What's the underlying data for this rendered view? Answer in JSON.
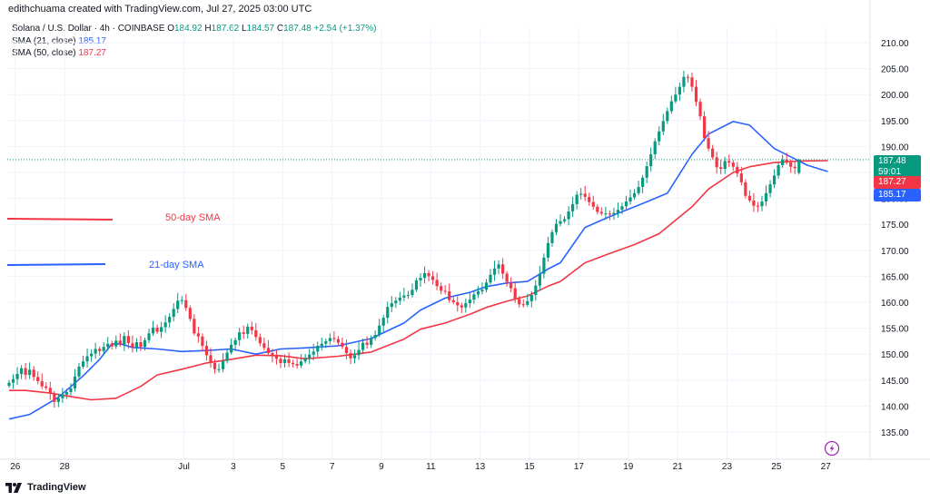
{
  "credit": "edithchuama created with TradingView.com, Jul 27, 2025 03:00 UTC",
  "symbol": {
    "name": "Solana / U.S. Dollar · 4h · COINBASE",
    "o_label": "O",
    "o": "184.92",
    "h_label": "H",
    "h": "187.62",
    "l_label": "L",
    "l": "184.57",
    "c_label": "C",
    "c": "187.48",
    "change": "+2.54 (+1.37%)"
  },
  "indicators": [
    {
      "label": "SMA (21, close)",
      "value": "185.17",
      "color": "#2962ff"
    },
    {
      "label": "SMA (50, close)",
      "value": "187.27",
      "color": "#f23645"
    }
  ],
  "price_tags": {
    "last_price": "187.48",
    "countdown": "59:01",
    "sma50": "187.27",
    "sma21": "185.17"
  },
  "annotations": {
    "sma50_label": "50-day SMA",
    "sma21_label": "21-day SMA"
  },
  "footer": {
    "brand": "TradingView"
  },
  "icons": {
    "logo": "tradingview-logo-icon",
    "alert": "lightning-icon"
  },
  "colors": {
    "up": "#089981",
    "down": "#f23645",
    "sma21": "#2962ff",
    "sma50": "#f23645",
    "grid": "#f0f3fa",
    "text": "#131722"
  },
  "chart_data": {
    "type": "candlestick",
    "interval": "4h",
    "ylim": [
      130,
      212
    ],
    "y_ticks": [
      135,
      140,
      145,
      150,
      155,
      160,
      165,
      170,
      175,
      180,
      185,
      190,
      195,
      200,
      205,
      210
    ],
    "x_tick_labels": [
      {
        "x": 1.5,
        "label": "26"
      },
      {
        "x": 13.5,
        "label": "28"
      },
      {
        "x": 42.5,
        "label": "Jul"
      },
      {
        "x": 54.5,
        "label": "3"
      },
      {
        "x": 66.5,
        "label": "5"
      },
      {
        "x": 78.5,
        "label": "7"
      },
      {
        "x": 90.5,
        "label": "9"
      },
      {
        "x": 102.5,
        "label": "11"
      },
      {
        "x": 114.5,
        "label": "13"
      },
      {
        "x": 126.5,
        "label": "15"
      },
      {
        "x": 138.5,
        "label": "17"
      },
      {
        "x": 150.5,
        "label": "19"
      },
      {
        "x": 162.5,
        "label": "21"
      },
      {
        "x": 174.5,
        "label": "23"
      },
      {
        "x": 186.5,
        "label": "25"
      },
      {
        "x": 198.5,
        "label": "27"
      }
    ],
    "grid": true,
    "candle_closes": [
      144.5,
      145.2,
      146.2,
      147.3,
      146.0,
      147.0,
      145.6,
      144.8,
      143.8,
      143.5,
      142.4,
      140.8,
      141.5,
      142.2,
      142.7,
      143.4,
      145.7,
      147.6,
      148.6,
      149.6,
      150.1,
      151.0,
      150.6,
      151.4,
      152.0,
      151.5,
      152.6,
      151.8,
      153.5,
      152.1,
      151.3,
      152.3,
      151.4,
      152.7,
      154.0,
      155.1,
      154.3,
      155.2,
      156.1,
      157.2,
      158.7,
      160.3,
      160.4,
      158.9,
      156.8,
      154.0,
      153.4,
      151.6,
      149.8,
      148.3,
      147.1,
      147.1,
      148.7,
      150.3,
      151.8,
      152.7,
      154.2,
      153.9,
      155.3,
      154.6,
      153.3,
      152.1,
      151.2,
      150.2,
      149.6,
      149.1,
      148.3,
      149.0,
      148.3,
      148.1,
      147.8,
      148.6,
      149.3,
      149.9,
      150.5,
      151.6,
      152.0,
      152.5,
      153.1,
      152.9,
      152.2,
      151.4,
      150.2,
      149.2,
      149.8,
      150.8,
      152.2,
      151.8,
      153.1,
      153.7,
      155.5,
      157.0,
      159.1,
      159.8,
      160.3,
      160.9,
      161.3,
      161.4,
      162.4,
      164.2,
      164.7,
      165.6,
      165.0,
      164.3,
      163.1,
      162.2,
      162.1,
      160.4,
      160.0,
      159.4,
      159.0,
      159.8,
      160.5,
      161.5,
      162.1,
      162.4,
      163.8,
      165.3,
      166.5,
      167.3,
      165.5,
      163.9,
      162.7,
      160.6,
      159.6,
      159.5,
      160.2,
      161.4,
      163.2,
      165.5,
      168.6,
      171.4,
      173.5,
      175.1,
      175.6,
      176.0,
      177.5,
      178.9,
      180.7,
      180.9,
      180.3,
      179.3,
      178.4,
      177.4,
      177.1,
      177.1,
      176.9,
      177.2,
      177.8,
      178.5,
      179.4,
      180.2,
      181.0,
      182.2,
      184.0,
      186.2,
      188.5,
      191.0,
      192.9,
      194.9,
      196.8,
      198.7,
      200.0,
      201.5,
      203.4,
      203.3,
      201.5,
      198.6,
      195.8,
      191.6,
      189.6,
      187.9,
      186.0,
      185.7,
      187.2,
      186.9,
      186.1,
      184.8,
      183.1,
      180.5,
      179.6,
      178.6,
      178.5,
      179.4,
      181.0,
      182.7,
      184.4,
      186.4,
      187.5,
      186.9,
      186.1,
      185.8,
      187.48
    ],
    "sma21_series": [
      {
        "name": "SMA (21, close)",
        "points": [
          [
            0,
            137.5
          ],
          [
            5,
            138.4
          ],
          [
            12,
            141.7
          ],
          [
            18,
            145.8
          ],
          [
            22,
            149.0
          ],
          [
            25,
            152.0
          ],
          [
            27,
            152.0
          ],
          [
            30,
            151.3
          ],
          [
            36,
            151.0
          ],
          [
            42,
            150.5
          ],
          [
            48,
            150.7
          ],
          [
            54,
            151.0
          ],
          [
            60,
            150.0
          ],
          [
            66,
            151.0
          ],
          [
            72,
            151.2
          ],
          [
            80,
            151.6
          ],
          [
            88,
            153.0
          ],
          [
            96,
            156.0
          ],
          [
            100,
            158.5
          ],
          [
            106,
            160.8
          ],
          [
            112,
            161.9
          ],
          [
            116,
            163.0
          ],
          [
            121,
            163.7
          ],
          [
            126,
            164.0
          ],
          [
            131,
            166.4
          ],
          [
            134,
            167.6
          ],
          [
            140,
            174.4
          ],
          [
            146,
            176.5
          ],
          [
            154,
            179.0
          ],
          [
            160,
            181.0
          ],
          [
            166,
            188.5
          ],
          [
            170,
            192.4
          ],
          [
            174,
            194.0
          ],
          [
            176,
            194.8
          ],
          [
            180,
            194.1
          ],
          [
            186,
            189.6
          ],
          [
            190,
            188.0
          ],
          [
            194,
            186.4
          ],
          [
            199,
            185.17
          ]
        ]
      }
    ],
    "sma50_series": [
      {
        "name": "SMA (50, close)",
        "points": [
          [
            0,
            143.0
          ],
          [
            4,
            143.0
          ],
          [
            10,
            142.5
          ],
          [
            16,
            141.7
          ],
          [
            20,
            141.2
          ],
          [
            26,
            141.5
          ],
          [
            32,
            143.8
          ],
          [
            36,
            146.0
          ],
          [
            42,
            147.1
          ],
          [
            48,
            148.3
          ],
          [
            54,
            149.0
          ],
          [
            60,
            149.8
          ],
          [
            66,
            149.7
          ],
          [
            72,
            149.1
          ],
          [
            80,
            149.6
          ],
          [
            88,
            150.4
          ],
          [
            96,
            152.9
          ],
          [
            100,
            154.8
          ],
          [
            106,
            156.0
          ],
          [
            112,
            157.7
          ],
          [
            116,
            159.0
          ],
          [
            121,
            160.2
          ],
          [
            126,
            161.2
          ],
          [
            131,
            163.1
          ],
          [
            134,
            164.0
          ],
          [
            140,
            167.6
          ],
          [
            146,
            169.4
          ],
          [
            152,
            171.1
          ],
          [
            158,
            173.2
          ],
          [
            166,
            178.4
          ],
          [
            170,
            181.8
          ],
          [
            176,
            185.0
          ],
          [
            180,
            186.1
          ],
          [
            186,
            186.9
          ],
          [
            192,
            187.2
          ],
          [
            199,
            187.27
          ]
        ]
      }
    ],
    "last_price": 187.48,
    "legend": [
      "SMA (21, close)",
      "SMA (50, close)"
    ]
  }
}
